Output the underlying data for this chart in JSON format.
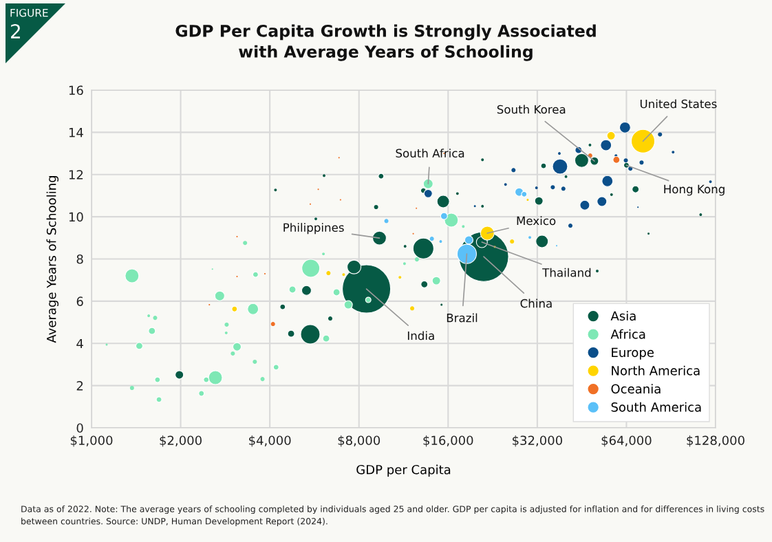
{
  "chart_data": {
    "type": "bubble",
    "title": "GDP Per Capita Growth is Strongly Associated\nwith Average Years of Schooling",
    "xlabel": "GDP per Capita",
    "ylabel": "Average Years of Schooling",
    "log": "x",
    "grid": true,
    "legend": "bottom right",
    "marker": "circle",
    "xlim": [
      1000,
      128000
    ],
    "ylim": [
      0,
      16
    ],
    "xticks": [
      {
        "value": 1000,
        "label": "$1,000"
      },
      {
        "value": 2000,
        "label": "$2,000"
      },
      {
        "value": 4000,
        "label": "$4,000"
      },
      {
        "value": 8000,
        "label": "$8,000"
      },
      {
        "value": 16000,
        "label": "$16,000"
      },
      {
        "value": 32000,
        "label": "$32,000"
      },
      {
        "value": 64000,
        "label": "$64,000"
      },
      {
        "value": 128000,
        "label": "$128,000"
      }
    ],
    "yticks": [
      0,
      2,
      4,
      6,
      8,
      10,
      12,
      14,
      16
    ],
    "series": [
      {
        "name": "Asia",
        "color": "#065a45",
        "x": [
          8480,
          21100,
          9380,
          20800,
          49900,
          64000,
          45200,
          33600,
          32400,
          33200,
          15400,
          68700,
          48200,
          51000,
          40000,
          20900,
          20900,
          17200,
          13200,
          9500,
          13200,
          13300,
          9140,
          5480,
          5320,
          4720,
          4420,
          6400,
          6100,
          4180,
          5720,
          7700,
          1980,
          11450,
          114000,
          76000,
          57000,
          15200
        ],
        "values": [
          6.58,
          8.11,
          8.99,
          8.8,
          12.64,
          12.44,
          12.67,
          12.41,
          10.75,
          8.83,
          10.72,
          11.3,
          13.4,
          7.43,
          11.9,
          12.7,
          10.5,
          11.1,
          8.5,
          11.92,
          11.24,
          6.8,
          10.46,
          4.43,
          6.51,
          4.46,
          5.73,
          5.18,
          11.95,
          11.27,
          9.9,
          7.62,
          2.51,
          8.6,
          10.1,
          9.2,
          11.05,
          5.83
        ],
        "sizes": [
          0.945,
          1,
          0.077,
          0.049,
          0.028,
          0.012,
          0.077,
          0.012,
          0.028,
          0.0625,
          0.0625,
          0.019,
          0.003,
          0.003,
          0.003,
          0.003,
          0.003,
          0.003,
          0.174,
          0.012,
          0.012,
          0.019,
          0.007,
          0.151,
          0.038,
          0.019,
          0.012,
          0.007,
          0.003,
          0.003,
          0.003,
          0.077,
          0.028,
          0.003,
          0.003,
          0.0017,
          0.003,
          0.0017
        ]
      },
      {
        "name": "Africa",
        "color": "#7ee8b5",
        "x": [
          13700,
          16400,
          5500,
          4770,
          6720,
          7360,
          8600,
          6200,
          14600,
          12550,
          11400,
          6070,
          1370,
          3300,
          3580,
          2710,
          3510,
          1640,
          1560,
          1600,
          1450,
          1125,
          2860,
          2850,
          3100,
          3000,
          2620,
          2440,
          2350,
          1670,
          1690,
          1370,
          3560,
          3780,
          4200,
          2560,
          18000
        ],
        "values": [
          11.56,
          9.84,
          7.56,
          6.55,
          6.42,
          5.83,
          6.06,
          4.23,
          6.97,
          7.98,
          7.78,
          8.24,
          7.2,
          8.76,
          7.26,
          6.25,
          5.63,
          5.21,
          5.31,
          4.59,
          3.88,
          3.94,
          4.89,
          4.5,
          3.84,
          3.52,
          2.38,
          2.28,
          1.63,
          2.28,
          1.34,
          1.89,
          3.13,
          2.31,
          2.87,
          7.52,
          9.54
        ],
        "sizes": [
          0.038,
          0.077,
          0.13,
          0.019,
          0.019,
          0.028,
          0.012,
          0.019,
          0.028,
          0.007,
          0.003,
          0.003,
          0.077,
          0.007,
          0.012,
          0.038,
          0.049,
          0.007,
          0.003,
          0.019,
          0.019,
          0.0017,
          0.007,
          0.003,
          0.028,
          0.007,
          0.077,
          0.012,
          0.012,
          0.012,
          0.012,
          0.007,
          0.007,
          0.007,
          0.012,
          0.0008,
          0.003
        ]
      },
      {
        "name": "Europe",
        "color": "#0b4f8a",
        "x": [
          63300,
          54600,
          38200,
          44100,
          55200,
          46300,
          52900,
          83100,
          72000,
          66000,
          63700,
          92000,
          123000,
          41400,
          36100,
          39200,
          26600,
          25000,
          38000,
          59000,
          31800,
          13700,
          70000,
          19700
        ],
        "values": [
          14.23,
          13.39,
          12.38,
          13.16,
          11.69,
          10.55,
          10.72,
          13.9,
          12.57,
          12.28,
          12.67,
          13.06,
          11.66,
          9.58,
          11.4,
          11.33,
          12.21,
          11.53,
          13.0,
          12.9,
          11.37,
          11.1,
          10.45,
          10.5
        ],
        "sizes": [
          0.049,
          0.049,
          0.093,
          0.019,
          0.049,
          0.038,
          0.038,
          0.007,
          0.007,
          0.007,
          0.007,
          0.003,
          0.003,
          0.007,
          0.007,
          0.007,
          0.007,
          0.003,
          0.003,
          0.003,
          0.003,
          0.028,
          0.0008,
          0.0017
        ]
      },
      {
        "name": "North America",
        "color": "#ffd400",
        "x": [
          72800,
          21700,
          56800,
          26300,
          6310,
          12100,
          11000,
          7100,
          3040,
          23000,
          29700
        ],
        "values": [
          13.58,
          9.22,
          13.84,
          8.83,
          7.33,
          5.66,
          7.13,
          7.26,
          5.63,
          8.57,
          10.8
        ],
        "sizes": [
          0.223,
          0.077,
          0.028,
          0.007,
          0.007,
          0.007,
          0.003,
          0.003,
          0.012,
          0.0017,
          0.0017
        ]
      },
      {
        "name": "Oceania",
        "color": "#f07026",
        "x": [
          59200,
          48300,
          4100,
          3100,
          3100,
          3850,
          2500,
          6850,
          5830,
          6930,
          5480,
          12200,
          12500,
          15500
        ],
        "values": [
          12.7,
          12.9,
          4.92,
          9.06,
          7.17,
          7.3,
          5.83,
          12.8,
          11.3,
          10.8,
          10.6,
          9.2,
          10.4,
          13.0
        ],
        "sizes": [
          0.019,
          0.007,
          0.007,
          0.0008,
          0.0008,
          0.0008,
          0.0008,
          0.0008,
          0.0008,
          0.0008,
          0.0008,
          0.0008,
          0.0008,
          0.0008
        ]
      },
      {
        "name": "South America",
        "color": "#5bc0f8",
        "x": [
          18500,
          18800,
          27800,
          28900,
          15500,
          14100,
          15100,
          9900,
          30200,
          37200
        ],
        "values": [
          8.24,
          8.9,
          11.17,
          11.07,
          10.03,
          8.96,
          8.83,
          9.8,
          9.02,
          8.63
        ],
        "sizes": [
          0.151,
          0.028,
          0.028,
          0.012,
          0.019,
          0.007,
          0.003,
          0.007,
          0.003,
          0.0008
        ]
      }
    ],
    "annotations": [
      "FIGURE",
      "2",
      {
        "text": "India",
        "x": 8480,
        "y": 6.58
      },
      {
        "text": "China",
        "x": 21100,
        "y": 8.11
      },
      {
        "text": "Brazil",
        "x": 18500,
        "y": 8.24
      },
      {
        "text": "Thailand",
        "x": 20800,
        "y": 8.8
      },
      {
        "text": "Mexico",
        "x": 21700,
        "y": 9.22
      },
      {
        "text": "Philippines",
        "x": 9380,
        "y": 8.99
      },
      {
        "text": "South Africa",
        "x": 13700,
        "y": 11.56
      },
      {
        "text": "South Korea",
        "x": 49900,
        "y": 12.64
      },
      {
        "text": "United States",
        "x": 72800,
        "y": 13.58
      },
      {
        "text": "Hong Kong",
        "x": 64000,
        "y": 12.44
      },
      "Data as of 2022. Note: The average years of schooling completed by individuals aged 25 and older. GDP per capita is adjusted for inflation and for differences in living costs between countries. Source: UNDP, Human Development Report (2024)."
    ]
  }
}
